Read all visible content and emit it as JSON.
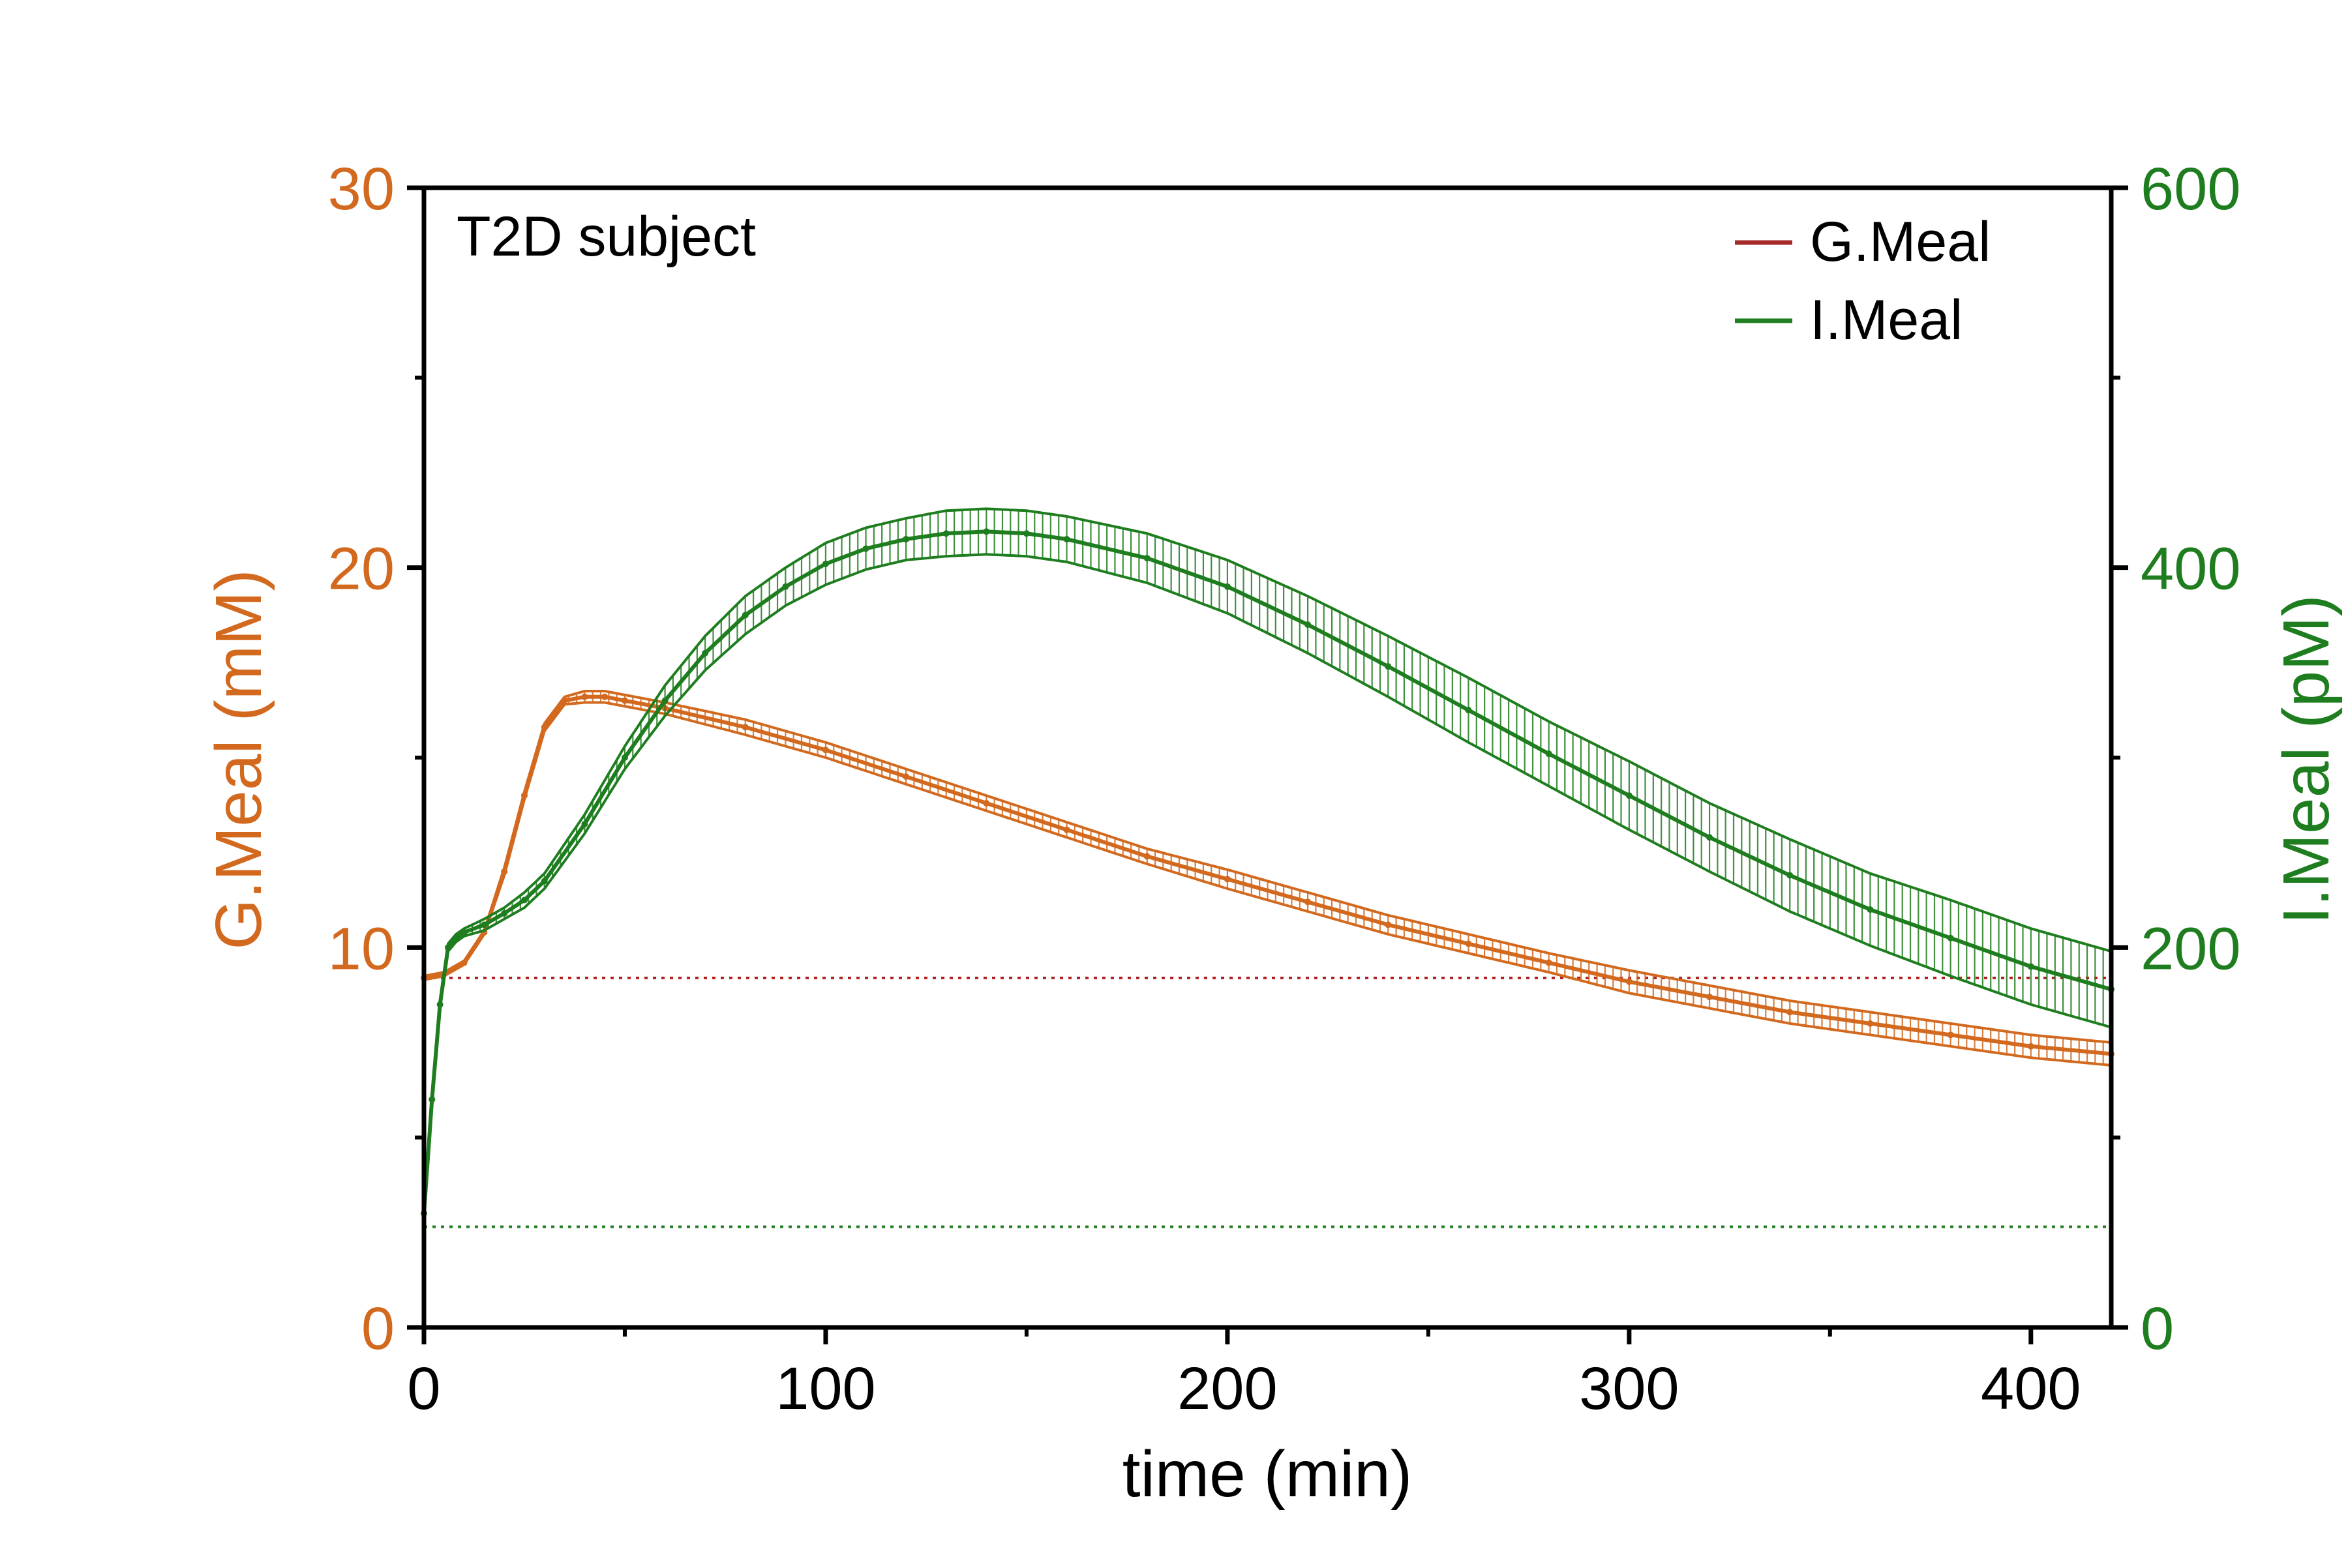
{
  "chart_data": {
    "type": "line",
    "annotation": "T2D subject",
    "xlabel": "time (min)",
    "ylabel_left": "G.Meal (mM)",
    "ylabel_right": "I.Meal (pM)",
    "xlim": [
      0,
      420
    ],
    "ylim_left": [
      0,
      30
    ],
    "ylim_right": [
      0,
      600
    ],
    "x_ticks": [
      "0",
      "100",
      "200",
      "300",
      "400"
    ],
    "y_left_ticks": [
      "0",
      "10",
      "20",
      "30"
    ],
    "y_right_ticks": [
      "0",
      "200",
      "400",
      "600"
    ],
    "grid": false,
    "legend_position": "top-right",
    "legend": [
      "G.Meal",
      "I.Meal"
    ],
    "colors": {
      "glucose": "#D2691E",
      "glucose_legend": "#A52A2A",
      "glucose_baseline": "#B22222",
      "insulin": "#1E7D1E",
      "axis": "#000000"
    },
    "series": [
      {
        "name": "G.Meal",
        "axis": "left",
        "x": [
          0,
          5,
          10,
          15,
          20,
          25,
          30,
          35,
          40,
          45,
          50,
          60,
          80,
          100,
          120,
          140,
          160,
          180,
          200,
          220,
          240,
          260,
          280,
          300,
          320,
          340,
          360,
          380,
          400,
          420
        ],
        "y": [
          9.2,
          9.3,
          9.6,
          10.4,
          12.0,
          14.0,
          15.8,
          16.5,
          16.6,
          16.6,
          16.5,
          16.3,
          15.8,
          15.2,
          14.5,
          13.8,
          13.1,
          12.4,
          11.8,
          11.2,
          10.6,
          10.1,
          9.6,
          9.1,
          8.7,
          8.3,
          8.0,
          7.7,
          7.4,
          7.2
        ],
        "error": [
          0.05,
          0.05,
          0.05,
          0.05,
          0.1,
          0.1,
          0.1,
          0.1,
          0.15,
          0.15,
          0.15,
          0.15,
          0.2,
          0.2,
          0.2,
          0.2,
          0.2,
          0.2,
          0.25,
          0.25,
          0.25,
          0.25,
          0.25,
          0.3,
          0.3,
          0.3,
          0.3,
          0.3,
          0.3,
          0.3
        ],
        "baseline": 9.2
      },
      {
        "name": "I.Meal",
        "axis": "right",
        "x": [
          0,
          2,
          4,
          6,
          8,
          10,
          15,
          20,
          25,
          30,
          40,
          50,
          60,
          70,
          80,
          90,
          100,
          110,
          120,
          130,
          140,
          150,
          160,
          180,
          200,
          220,
          240,
          260,
          280,
          300,
          320,
          340,
          360,
          380,
          400,
          420
        ],
        "y": [
          60,
          120,
          170,
          200,
          205,
          208,
          212,
          218,
          225,
          235,
          265,
          300,
          330,
          355,
          375,
          390,
          402,
          410,
          415,
          418,
          419,
          418,
          415,
          405,
          390,
          370,
          348,
          325,
          302,
          280,
          258,
          238,
          220,
          205,
          190,
          178
        ],
        "error": [
          0,
          1,
          2,
          2,
          2,
          2,
          3,
          3,
          4,
          4,
          5,
          6,
          8,
          9,
          10,
          10,
          11,
          11,
          11,
          12,
          12,
          12,
          12,
          13,
          14,
          15,
          16,
          17,
          17,
          18,
          18,
          19,
          19,
          20,
          20,
          20
        ],
        "baseline": 53
      }
    ]
  }
}
